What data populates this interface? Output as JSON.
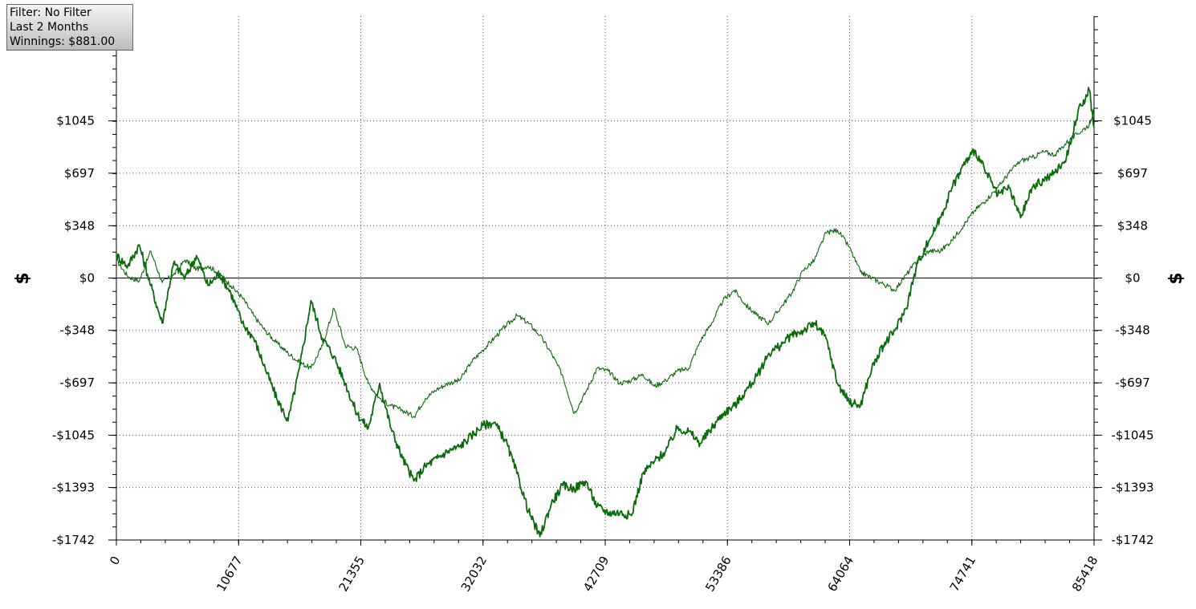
{
  "info_box": {
    "filter": "Filter: No Filter",
    "period": "Last 2 Months",
    "winnings": "Winnings: $881.00"
  },
  "chart_data": {
    "type": "line",
    "ylabel_left": "$",
    "ylabel_right": "$",
    "xlim": [
      0,
      85418
    ],
    "ylim": [
      -1742,
      1742
    ],
    "x_ticks": [
      0,
      10677,
      21355,
      32032,
      42709,
      53386,
      64064,
      74741,
      85418
    ],
    "x_tick_labels": [
      "0",
      "10677",
      "21355",
      "32032",
      "42709",
      "53386",
      "64064",
      "74741",
      "85418"
    ],
    "y_ticks": [
      1045,
      697,
      348,
      0,
      -348,
      -697,
      -1045,
      -1393,
      -1742
    ],
    "y_tick_labels": [
      "$1045",
      "$697",
      "$348",
      "$0",
      "-$348",
      "-$697",
      "-$1045",
      "-$1393",
      "-$1742"
    ],
    "grid": true,
    "zero_line": true,
    "line_color": "#0b6b0b",
    "series": [
      {
        "x": [
          0,
          1000,
          2000,
          3000,
          4000,
          5000,
          6000,
          7000,
          8000,
          9000,
          10000,
          11000,
          12000,
          13000,
          14000,
          15000,
          16000,
          17000,
          18000,
          19000,
          20000,
          21000,
          22000,
          23000,
          24000,
          25000,
          26000,
          27000,
          28000,
          29000,
          30000,
          31000,
          32000,
          33000,
          34000,
          35000,
          36000,
          37000,
          38000,
          39000,
          40000,
          41000,
          42000,
          43000,
          44000,
          45000,
          46000,
          47000,
          48000,
          49000,
          50000,
          51000,
          52000,
          53000,
          54000,
          55000,
          56000,
          57000,
          58000,
          59000,
          60000,
          61000,
          62000,
          63000,
          64000,
          65000,
          66000,
          67000,
          68000,
          69000,
          70000,
          71000,
          72000,
          73000,
          74000,
          75000,
          76000,
          77000,
          78000,
          79000,
          80000,
          81000,
          82000,
          83000,
          84000,
          85000,
          85418
        ],
        "y": [
          120,
          10,
          -20,
          180,
          -30,
          20,
          120,
          60,
          80,
          30,
          -50,
          -130,
          -250,
          -350,
          -430,
          -500,
          -560,
          -600,
          -450,
          -200,
          -450,
          -470,
          -700,
          -800,
          -850,
          -880,
          -920,
          -800,
          -740,
          -700,
          -680,
          -560,
          -480,
          -400,
          -320,
          -250,
          -300,
          -380,
          -500,
          -650,
          -900,
          -760,
          -600,
          -620,
          -700,
          -680,
          -640,
          -720,
          -680,
          -620,
          -600,
          -420,
          -300,
          -150,
          -80,
          -180,
          -250,
          -300,
          -200,
          -100,
          50,
          120,
          300,
          320,
          210,
          40,
          0,
          -40,
          -80,
          20,
          120,
          180,
          180,
          250,
          350,
          450,
          520,
          600,
          700,
          780,
          800,
          840,
          820,
          900,
          960,
          1020,
          1120
        ]
      },
      {
        "x": [
          0,
          1000,
          2000,
          3000,
          4000,
          5000,
          6000,
          7000,
          8000,
          9000,
          10000,
          11000,
          12000,
          13000,
          14000,
          15000,
          16000,
          17000,
          18000,
          19000,
          20000,
          21000,
          22000,
          23000,
          24000,
          25000,
          26000,
          27000,
          28000,
          29000,
          30000,
          31000,
          32000,
          33000,
          34000,
          35000,
          36000,
          37000,
          38000,
          39000,
          40000,
          41000,
          42000,
          43000,
          44000,
          45000,
          46000,
          47000,
          48000,
          49000,
          50000,
          51000,
          52000,
          53000,
          54000,
          55000,
          56000,
          57000,
          58000,
          59000,
          60000,
          61000,
          62000,
          63000,
          64000,
          65000,
          66000,
          67000,
          68000,
          69000,
          70000,
          71000,
          72000,
          73000,
          74000,
          75000,
          76000,
          77000,
          78000,
          79000,
          80000,
          81000,
          82000,
          83000,
          84000,
          85000,
          85418
        ],
        "y": [
          150,
          80,
          220,
          -50,
          -300,
          100,
          0,
          150,
          -50,
          30,
          -100,
          -300,
          -400,
          -600,
          -800,
          -950,
          -600,
          -150,
          -400,
          -520,
          -700,
          -900,
          -1000,
          -700,
          -1000,
          -1200,
          -1350,
          -1250,
          -1200,
          -1150,
          -1120,
          -1050,
          -980,
          -960,
          -1080,
          -1300,
          -1550,
          -1720,
          -1500,
          -1380,
          -1400,
          -1350,
          -1520,
          -1560,
          -1560,
          -1580,
          -1300,
          -1220,
          -1150,
          -1000,
          -1020,
          -1100,
          -1000,
          -900,
          -850,
          -750,
          -650,
          -500,
          -450,
          -380,
          -350,
          -300,
          -400,
          -700,
          -820,
          -850,
          -600,
          -450,
          -350,
          -200,
          100,
          250,
          400,
          600,
          750,
          850,
          700,
          550,
          600,
          400,
          600,
          650,
          700,
          800,
          1100,
          1250,
          1000
        ]
      }
    ]
  }
}
